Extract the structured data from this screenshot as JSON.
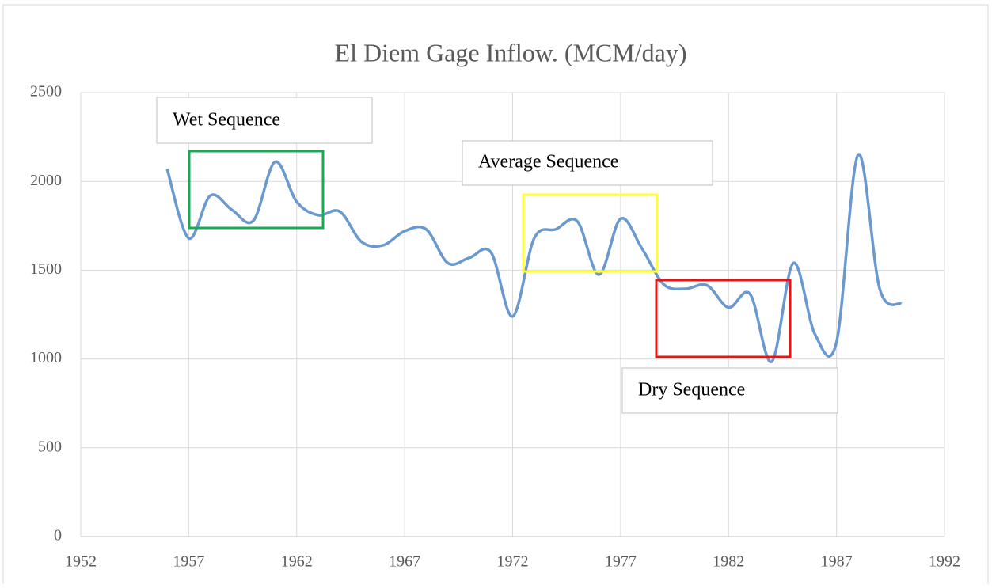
{
  "chart_data": {
    "type": "line",
    "title": "El Diem Gage Inflow. (MCM/day)",
    "x": [
      1956,
      1957,
      1958,
      1959,
      1960,
      1961,
      1962,
      1963,
      1964,
      1965,
      1966,
      1967,
      1968,
      1969,
      1970,
      1971,
      1972,
      1973,
      1974,
      1975,
      1976,
      1977,
      1978,
      1979,
      1980,
      1981,
      1982,
      1983,
      1984,
      1985,
      1986,
      1987,
      1988,
      1989,
      1990
    ],
    "series": [
      {
        "color": "#6a99cf",
        "values": [
          2070,
          1680,
          1920,
          1840,
          1780,
          2110,
          1885,
          1810,
          1830,
          1660,
          1640,
          1720,
          1730,
          1540,
          1570,
          1600,
          1240,
          1680,
          1730,
          1775,
          1475,
          1790,
          1620,
          1420,
          1395,
          1415,
          1290,
          1365,
          985,
          1540,
          1140,
          1095,
          2150,
          1395,
          1310
        ]
      }
    ],
    "xlim": [
      1952,
      1992
    ],
    "xticks": [
      1952,
      1957,
      1962,
      1967,
      1972,
      1977,
      1982,
      1987,
      1992
    ],
    "ylim": [
      0,
      2500
    ],
    "yticks": [
      0,
      500,
      1000,
      1500,
      2000,
      2500
    ],
    "grid": true,
    "annotations": [
      "Wet Sequence",
      "Average Sequence",
      "Dry Sequence"
    ]
  }
}
